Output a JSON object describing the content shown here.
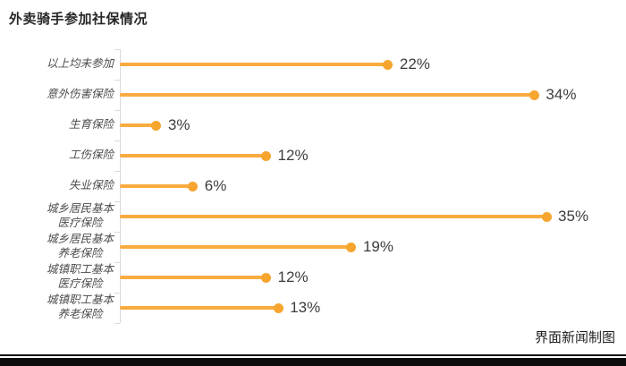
{
  "chart_data": {
    "type": "bar",
    "style": "lollipop",
    "orientation": "horizontal",
    "title": "外卖骑手参加社保情况",
    "xlabel": "",
    "ylabel": "",
    "xlim": [
      0,
      40
    ],
    "grid": false,
    "legend": "none",
    "categories": [
      "以上均未参加",
      "意外伤害保险",
      "生育保险",
      "工伤保险",
      "失业保险",
      "城乡居民基本\n医疗保险",
      "城乡居民基本\n养老保险",
      "城镇职工基本\n医疗保险",
      "城镇职工基本\n养老保险"
    ],
    "values": [
      22,
      34,
      3,
      12,
      6,
      35,
      19,
      12,
      13
    ],
    "value_labels": [
      "22%",
      "34%",
      "3%",
      "12%",
      "6%",
      "35%",
      "19%",
      "12%",
      "13%"
    ],
    "colors": {
      "line": "#F9AB3F",
      "dot": "#F6A52F",
      "axis": "#D9D9D9",
      "title_text": "#262626",
      "category_text": "#4D4D4D",
      "value_text": "#3D3D3D"
    }
  },
  "footer": {
    "credit": "界面新闻制图"
  }
}
